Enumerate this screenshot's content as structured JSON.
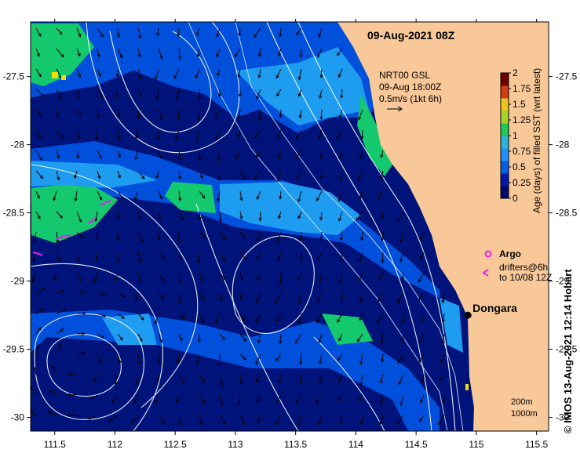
{
  "header": {
    "date_label": "09-Aug-2021 08Z"
  },
  "current_key": {
    "line1": "NRT00 GSL",
    "line2": "09-Aug 18:00Z",
    "line3": "0.5m/s (1kt 6h)"
  },
  "colorbar": {
    "title": "Age (days) of filled SST (wrt latest)",
    "ticks": [
      "0",
      "0.25",
      "0.5",
      "0.75",
      "1",
      "1.25",
      "1.5",
      "1.75",
      "2"
    ],
    "colors": [
      "#000a6e",
      "#0019a8",
      "#0060e8",
      "#1e90ff",
      "#2ab5d6",
      "#1ec85a",
      "#a8d22a",
      "#e8c81e",
      "#d23c14",
      "#6e0000"
    ]
  },
  "legend": {
    "argo_label": "Argo",
    "drifter_line1": "drifters@6h",
    "drifter_line2": "to 10/08 12Z",
    "marker_color": "#e81ee8"
  },
  "place": {
    "name": "Dongara",
    "lon": 114.93,
    "lat": -29.25
  },
  "isobaths": {
    "label_200": "200m",
    "label_1000": "1000m"
  },
  "credit": "© IMOS 13-Aug-2021 12:14 Hobart",
  "axes": {
    "x_ticks": [
      "111.5",
      "112",
      "112.5",
      "113",
      "113.5",
      "114",
      "114.5",
      "115",
      "115.5"
    ],
    "y_ticks": [
      "-27.5",
      "-28",
      "-28.5",
      "-29",
      "-29.5",
      "-30"
    ],
    "lon_range": [
      111.3,
      115.6
    ],
    "lat_range": [
      -30.1,
      -27.1
    ]
  },
  "palette": {
    "ocean_deep": "#00137a",
    "ocean_mid": "#0050dc",
    "ocean_light": "#1e9cf0",
    "ocean_green": "#14c86e",
    "land": "#f8c898"
  }
}
